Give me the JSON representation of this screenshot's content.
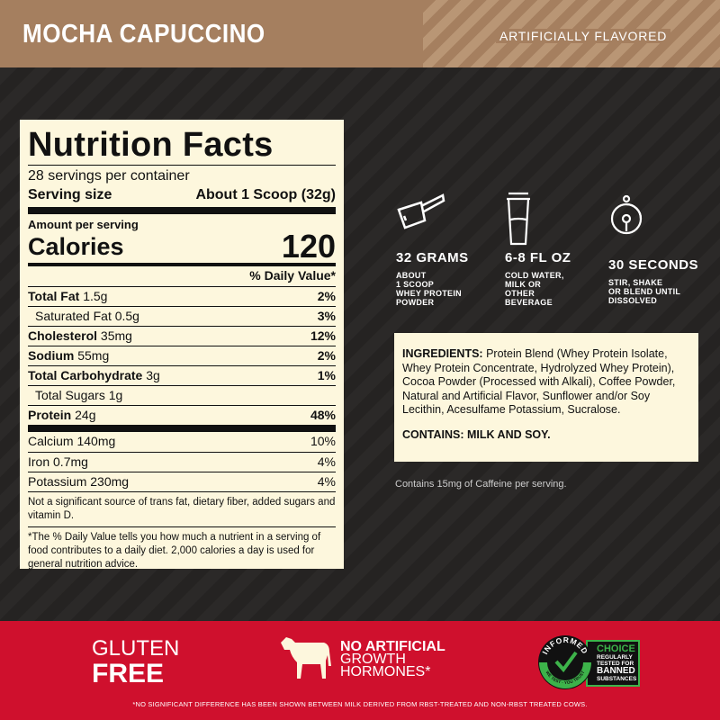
{
  "header": {
    "flavor": "MOCHA CAPUCCINO",
    "flavor_note": "ARTIFICIALLY FLAVORED"
  },
  "nutrition": {
    "title": "Nutrition Facts",
    "servings": "28 servings per container",
    "serving_size_label": "Serving size",
    "serving_size_value": "About 1 Scoop (32g)",
    "amount_per_serving": "Amount per serving",
    "calories_label": "Calories",
    "calories_value": "120",
    "dv_header": "% Daily Value*",
    "rows": [
      {
        "name": "Total Fat",
        "amount": "1.5g",
        "dv": "2%"
      },
      {
        "name": "Saturated Fat",
        "amount": "0.5g",
        "dv": "3%"
      },
      {
        "name": "Cholesterol",
        "amount": "35mg",
        "dv": "12%"
      },
      {
        "name": "Sodium",
        "amount": "55mg",
        "dv": "2%"
      },
      {
        "name": "Total Carbohydrate",
        "amount": "3g",
        "dv": "1%"
      },
      {
        "name": "Total Sugars",
        "amount": "1g",
        "dv": ""
      },
      {
        "name": "Protein",
        "amount": "24g",
        "dv": "48%"
      }
    ],
    "minerals": [
      {
        "name": "Calcium",
        "amount": "140mg",
        "dv": "10%"
      },
      {
        "name": "Iron",
        "amount": "0.7mg",
        "dv": "4%"
      },
      {
        "name": "Potassium",
        "amount": "230mg",
        "dv": "4%"
      }
    ],
    "note": "Not a significant source of trans fat, dietary fiber, added sugars and vitamin D.",
    "footnote": "*The % Daily Value tells you how much a nutrient in a serving of food contributes to a daily diet. 2,000 calories a day is used for general nutrition advice."
  },
  "features": [
    {
      "icon": "scoop-icon",
      "title": "32 GRAMS",
      "desc": "ABOUT\n1 SCOOP\nWHEY PROTEIN\nPOWDER"
    },
    {
      "icon": "shaker-icon",
      "title": "6-8 FL OZ",
      "desc": "COLD WATER,\nMILK OR\nOTHER\nBEVERAGE"
    },
    {
      "icon": "timer-icon",
      "title": "30 SECONDS",
      "desc": "STIR, SHAKE\nOR BLEND UNTIL\nDISSOLVED"
    }
  ],
  "ingredients": {
    "label": "INGREDIENTS:",
    "text": " Protein Blend (Whey Protein Isolate, Whey Protein Concentrate, Hydrolyzed Whey Protein), Cocoa Powder (Processed with Alkali), Coffee Powder, Natural and Artificial Flavor, Sunflower and/or Soy Lecithin, Acesulfame Potassium, Sucralose.",
    "contains": "CONTAINS: MILK AND SOY."
  },
  "caffeine": "Contains 15mg of Caffeine per serving.",
  "badges": {
    "gluten_1": "GLUTEN",
    "gluten_2": "FREE",
    "hormones_1": "NO ARTIFICIAL",
    "hormones_2": "GROWTH",
    "hormones_3": "HORMONES*",
    "informed_ring": "INFORMED",
    "informed_sub": "WE TEST · YOU TRUST",
    "choice": "CHOICE",
    "choice_1": "REGULARLY",
    "choice_2": "TESTED FOR",
    "choice_3": "BANNED",
    "choice_4": "SUBSTANCES"
  },
  "disclaimer": "*NO SIGNIFICANT DIFFERENCE HAS BEEN SHOWN BETWEEN MILK DERIVED FROM RBST-TREATED AND NON-RBST TREATED COWS.",
  "colors": {
    "tan": "#a57f5f",
    "cream": "#fdf7dd",
    "red": "#cf102d",
    "dark": "#2a2827",
    "green": "#3db34a"
  }
}
